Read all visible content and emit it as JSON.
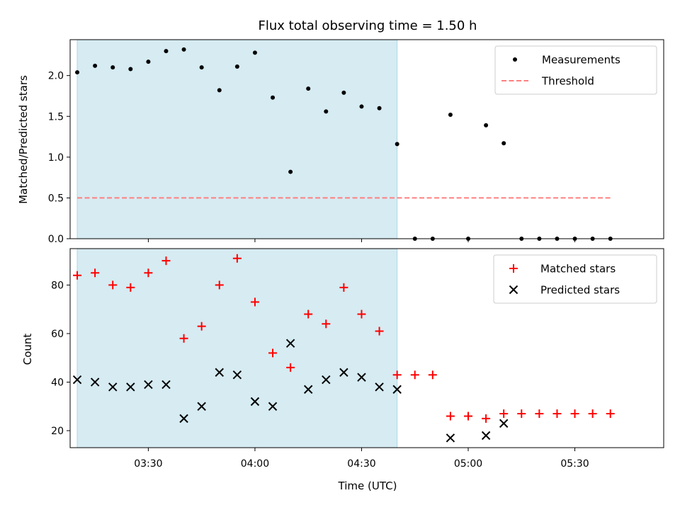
{
  "chart_data": [
    {
      "type": "scatter",
      "title": "Flux total observing time = 1.50 h",
      "xlabel": "",
      "ylabel": "Matched/Predicted stars",
      "xlim": [
        "03:08",
        "05:55"
      ],
      "ylim": [
        0,
        2.44
      ],
      "yticks": [
        "0.0",
        "0.5",
        "1.0",
        "1.5",
        "2.0"
      ],
      "shaded_span": [
        "03:10",
        "04:40"
      ],
      "legend_position": "top-right",
      "legend": [
        "Measurements",
        "Threshold"
      ],
      "series": [
        {
          "name": "Measurements",
          "marker": "dot",
          "color": "#000000",
          "x": [
            "03:10",
            "03:15",
            "03:20",
            "03:25",
            "03:30",
            "03:35",
            "03:40",
            "03:45",
            "03:50",
            "03:55",
            "04:00",
            "04:05",
            "04:10",
            "04:15",
            "04:20",
            "04:25",
            "04:30",
            "04:35",
            "04:40",
            "04:45",
            "04:50",
            "04:55",
            "05:00",
            "05:05",
            "05:10",
            "05:15",
            "05:20",
            "05:25",
            "05:30",
            "05:35",
            "05:40"
          ],
          "y": [
            2.04,
            2.12,
            2.1,
            2.08,
            2.17,
            2.3,
            2.32,
            2.1,
            1.82,
            2.11,
            2.28,
            1.73,
            0.82,
            1.84,
            1.56,
            1.79,
            1.62,
            1.6,
            1.16,
            0.0,
            0.0,
            1.52,
            0.0,
            1.39,
            1.17,
            0.0,
            0.0,
            0.0,
            0.0,
            0.0,
            0.0
          ]
        },
        {
          "name": "Threshold",
          "style": "dashed",
          "color": "#ff7f7f",
          "x": [
            "03:10",
            "05:40"
          ],
          "y": [
            0.5,
            0.5
          ]
        }
      ]
    },
    {
      "type": "scatter",
      "title": "",
      "xlabel": "Time (UTC)",
      "ylabel": "Count",
      "xlim": [
        "03:08",
        "05:55"
      ],
      "ylim": [
        13,
        95
      ],
      "yticks": [
        "20",
        "40",
        "60",
        "80"
      ],
      "xticks": [
        "03:30",
        "04:00",
        "04:30",
        "05:00",
        "05:30"
      ],
      "shaded_span": [
        "03:10",
        "04:40"
      ],
      "legend_position": "top-right",
      "legend": [
        "Matched stars",
        "Predicted stars"
      ],
      "series": [
        {
          "name": "Matched stars",
          "marker": "plus",
          "color": "#ff0000",
          "x": [
            "03:10",
            "03:15",
            "03:20",
            "03:25",
            "03:30",
            "03:35",
            "03:40",
            "03:45",
            "03:50",
            "03:55",
            "04:00",
            "04:05",
            "04:10",
            "04:15",
            "04:20",
            "04:25",
            "04:30",
            "04:35",
            "04:40",
            "04:45",
            "04:50",
            "04:55",
            "05:00",
            "05:05",
            "05:10",
            "05:15",
            "05:20",
            "05:25",
            "05:30",
            "05:35",
            "05:40"
          ],
          "y": [
            84,
            85,
            80,
            79,
            85,
            90,
            58,
            63,
            80,
            91,
            73,
            52,
            46,
            68,
            64,
            79,
            68,
            61,
            43,
            43,
            43,
            26,
            26,
            25,
            27,
            27,
            27,
            27,
            27,
            27,
            27
          ]
        },
        {
          "name": "Predicted stars",
          "marker": "x",
          "color": "#000000",
          "x": [
            "03:10",
            "03:15",
            "03:20",
            "03:25",
            "03:30",
            "03:35",
            "03:40",
            "03:45",
            "03:50",
            "03:55",
            "04:00",
            "04:05",
            "04:10",
            "04:15",
            "04:20",
            "04:25",
            "04:30",
            "04:35",
            "04:40",
            "04:55",
            "05:05",
            "05:10"
          ],
          "y": [
            41,
            40,
            38,
            38,
            39,
            39,
            25,
            30,
            44,
            43,
            32,
            30,
            56,
            37,
            41,
            44,
            42,
            38,
            37,
            17,
            18,
            23
          ]
        }
      ]
    }
  ]
}
